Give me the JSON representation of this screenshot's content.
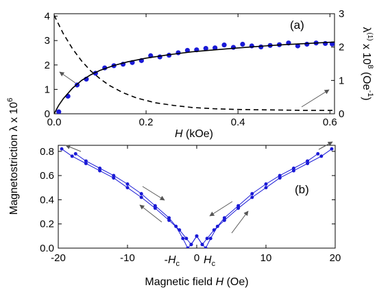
{
  "chart_data": [
    {
      "panel": "(a)",
      "type": "scatter",
      "xlabel_italic": "H",
      "xlabel_rest": " (kOe)",
      "xlim": [
        0,
        0.61
      ],
      "xticks": [
        0.0,
        0.2,
        0.4,
        0.6
      ],
      "xtick_labels": [
        "0.0",
        "0.2",
        "0.4",
        "0.6"
      ],
      "ylim_left": [
        0,
        4.1
      ],
      "yticks_left": [
        0,
        1,
        2,
        3,
        4
      ],
      "ytick_labels_left": [
        "0",
        "1",
        "2",
        "3",
        "4"
      ],
      "ylim_right": [
        0,
        3
      ],
      "yticks_right": [
        0,
        1,
        2,
        3
      ],
      "ytick_labels_right": [
        "0",
        "1",
        "2",
        "3"
      ],
      "right_ylabel": {
        "base": "λ",
        "sup1": "(1)",
        "middle": " x 10",
        "sup2": "8",
        "after": " (Oe",
        "sup3": "-1",
        "end": ")"
      },
      "series": [
        {
          "role": "measured points",
          "axis": "left",
          "color": "#1a1ad6",
          "x": [
            0.01,
            0.03,
            0.05,
            0.07,
            0.09,
            0.11,
            0.13,
            0.15,
            0.17,
            0.19,
            0.21,
            0.23,
            0.25,
            0.27,
            0.29,
            0.31,
            0.33,
            0.35,
            0.37,
            0.39,
            0.41,
            0.43,
            0.45,
            0.47,
            0.49,
            0.51,
            0.53,
            0.55,
            0.57,
            0.59,
            0.605
          ],
          "y": [
            0.08,
            0.72,
            1.18,
            1.42,
            1.66,
            1.88,
            1.97,
            2.03,
            2.1,
            2.18,
            2.38,
            2.33,
            2.4,
            2.5,
            2.6,
            2.62,
            2.68,
            2.7,
            2.82,
            2.72,
            2.85,
            2.78,
            2.74,
            2.8,
            2.83,
            2.9,
            2.78,
            2.85,
            2.9,
            2.88,
            2.86
          ]
        },
        {
          "role": "fit",
          "axis": "left",
          "style": "solid",
          "color": "#000000",
          "x": [
            0.0,
            0.01,
            0.02,
            0.04,
            0.06,
            0.08,
            0.1,
            0.13,
            0.16,
            0.2,
            0.25,
            0.3,
            0.35,
            0.4,
            0.45,
            0.5,
            0.55,
            0.61
          ],
          "y": [
            0.0,
            0.35,
            0.62,
            1.05,
            1.37,
            1.6,
            1.78,
            1.98,
            2.13,
            2.28,
            2.42,
            2.54,
            2.62,
            2.7,
            2.77,
            2.83,
            2.88,
            2.94
          ]
        },
        {
          "role": "derivative",
          "axis": "right",
          "style": "dashed",
          "color": "#000000",
          "x": [
            0.0,
            0.02,
            0.04,
            0.06,
            0.08,
            0.1,
            0.12,
            0.15,
            0.18,
            0.22,
            0.26,
            0.3,
            0.35,
            0.4,
            0.45,
            0.5,
            0.55,
            0.61
          ],
          "y": [
            2.95,
            2.4,
            1.95,
            1.58,
            1.28,
            1.05,
            0.85,
            0.63,
            0.47,
            0.33,
            0.25,
            0.19,
            0.15,
            0.13,
            0.12,
            0.11,
            0.1,
            0.1
          ]
        }
      ]
    },
    {
      "panel": "(b)",
      "type": "scatter",
      "xlabel": "Magnetic field ",
      "xlabel_italic": "H",
      "xlabel_unit": " (Oe)",
      "xlim": [
        -20,
        20
      ],
      "xticks": [
        -20,
        -10,
        0,
        10,
        20
      ],
      "xtick_labels": [
        "-20",
        "-10",
        "0",
        "10",
        "20"
      ],
      "ylim": [
        0,
        0.85
      ],
      "yticks": [
        0.0,
        0.2,
        0.4,
        0.6,
        0.8
      ],
      "ytick_labels": [
        "0.0",
        "0.2",
        "0.4",
        "0.6",
        "0.8"
      ],
      "hc_label": "H",
      "hc_sub": "c",
      "neg_hc_prefix": "-",
      "hc_value": 1.3,
      "series": [
        {
          "role": "decreasing-field branch",
          "color": "#1a1ad6",
          "x": [
            -19.5,
            -18,
            -16,
            -14,
            -12,
            -10,
            -8,
            -6,
            -4,
            -2.5,
            -1.5,
            -0.8,
            0,
            0.8,
            1.3,
            2,
            3,
            4,
            6,
            8,
            10,
            12,
            14,
            16,
            17.5
          ],
          "y": [
            0.82,
            0.76,
            0.7,
            0.64,
            0.58,
            0.5,
            0.42,
            0.33,
            0.23,
            0.15,
            0.08,
            0.03,
            0.1,
            0.03,
            0.0,
            0.08,
            0.18,
            0.25,
            0.35,
            0.45,
            0.53,
            0.6,
            0.66,
            0.72,
            0.78
          ]
        },
        {
          "role": "increasing-field branch",
          "color": "#1a1ad6",
          "x": [
            -17.5,
            -16,
            -14,
            -12,
            -10,
            -8,
            -6,
            -4,
            -3,
            -2,
            -1.3,
            -0.8,
            0,
            0.8,
            1.5,
            2.5,
            4,
            6,
            8,
            10,
            12,
            14,
            16,
            18,
            19.5
          ],
          "y": [
            0.78,
            0.72,
            0.66,
            0.6,
            0.53,
            0.45,
            0.35,
            0.25,
            0.18,
            0.08,
            0.0,
            0.03,
            0.1,
            0.03,
            0.08,
            0.15,
            0.23,
            0.33,
            0.42,
            0.5,
            0.58,
            0.64,
            0.7,
            0.76,
            0.82
          ]
        }
      ]
    }
  ],
  "shared_ylabel": {
    "prefix": "Magnetostriction λ x 10",
    "sup": "6"
  }
}
